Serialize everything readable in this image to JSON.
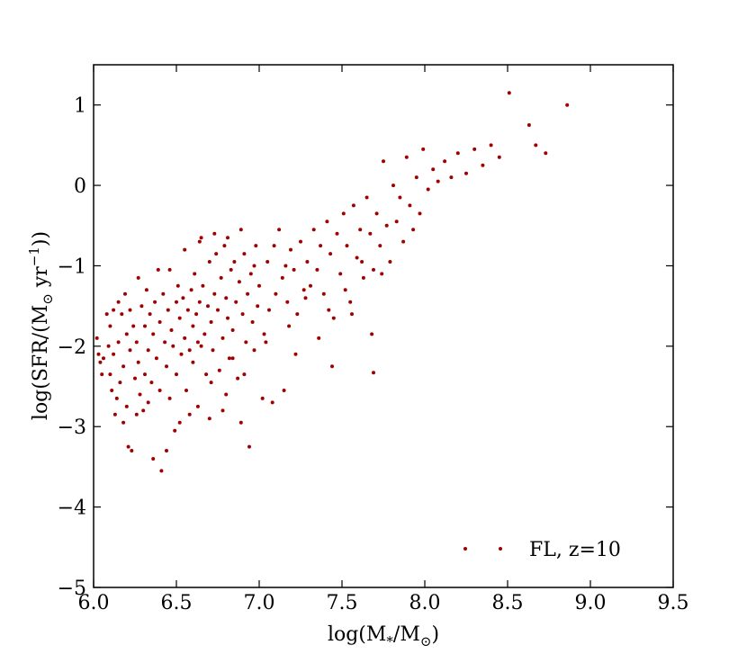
{
  "chart_data": {
    "type": "scatter",
    "xlabel": "log(M*/M⊙)",
    "ylabel": "log(SFR/(M⊙ yr−1))",
    "xlim": [
      6.0,
      9.5
    ],
    "ylim": [
      -5,
      1.5
    ],
    "x_ticks": [
      "6.0",
      "6.5",
      "7.0",
      "7.5",
      "8.0",
      "8.5",
      "9.0",
      "9.5"
    ],
    "y_ticks": [
      "−5",
      "−4",
      "−3",
      "−2",
      "−1",
      "0",
      "1"
    ],
    "grid": false,
    "legend_position": "lower-right",
    "marker_color": "#a00000",
    "series": [
      {
        "name": "FL, z=10",
        "points": [
          [
            6.02,
            -1.9
          ],
          [
            6.03,
            -2.1
          ],
          [
            6.04,
            -2.2
          ],
          [
            6.05,
            -2.35
          ],
          [
            6.06,
            -2.15
          ],
          [
            6.08,
            -1.6
          ],
          [
            6.09,
            -2.0
          ],
          [
            6.1,
            -1.75
          ],
          [
            6.1,
            -2.35
          ],
          [
            6.11,
            -2.55
          ],
          [
            6.12,
            -1.55
          ],
          [
            6.12,
            -2.1
          ],
          [
            6.13,
            -2.85
          ],
          [
            6.14,
            -2.65
          ],
          [
            6.15,
            -1.45
          ],
          [
            6.15,
            -1.95
          ],
          [
            6.16,
            -2.45
          ],
          [
            6.17,
            -1.6
          ],
          [
            6.18,
            -2.25
          ],
          [
            6.18,
            -2.95
          ],
          [
            6.19,
            -1.35
          ],
          [
            6.2,
            -1.85
          ],
          [
            6.2,
            -2.75
          ],
          [
            6.21,
            -3.25
          ],
          [
            6.22,
            -1.55
          ],
          [
            6.22,
            -2.05
          ],
          [
            6.23,
            -3.3
          ],
          [
            6.24,
            -1.75
          ],
          [
            6.25,
            -2.4
          ],
          [
            6.26,
            -1.95
          ],
          [
            6.27,
            -1.15
          ],
          [
            6.27,
            -2.2
          ],
          [
            6.28,
            -2.6
          ],
          [
            6.29,
            -1.5
          ],
          [
            6.3,
            -2.8
          ],
          [
            6.31,
            -1.75
          ],
          [
            6.31,
            -2.35
          ],
          [
            6.32,
            -1.3
          ],
          [
            6.33,
            -2.05
          ],
          [
            6.34,
            -1.6
          ],
          [
            6.35,
            -2.45
          ],
          [
            6.36,
            -1.85
          ],
          [
            6.36,
            -3.4
          ],
          [
            6.37,
            -1.45
          ],
          [
            6.38,
            -2.15
          ],
          [
            6.39,
            -1.05
          ],
          [
            6.4,
            -1.7
          ],
          [
            6.4,
            -2.55
          ],
          [
            6.41,
            -3.55
          ],
          [
            6.42,
            -1.35
          ],
          [
            6.43,
            -1.95
          ],
          [
            6.44,
            -2.25
          ],
          [
            6.45,
            -1.55
          ],
          [
            6.46,
            -1.05
          ],
          [
            6.46,
            -2.65
          ],
          [
            6.47,
            -1.8
          ],
          [
            6.48,
            -2.0
          ],
          [
            6.49,
            -3.05
          ],
          [
            6.5,
            -1.45
          ],
          [
            6.5,
            -2.35
          ],
          [
            6.51,
            -1.25
          ],
          [
            6.52,
            -1.65
          ],
          [
            6.53,
            -2.1
          ],
          [
            6.54,
            -1.4
          ],
          [
            6.55,
            -0.8
          ],
          [
            6.55,
            -1.9
          ],
          [
            6.56,
            -2.55
          ],
          [
            6.57,
            -1.55
          ],
          [
            6.58,
            -2.85
          ],
          [
            6.59,
            -1.3
          ],
          [
            6.6,
            -1.75
          ],
          [
            6.6,
            -2.2
          ],
          [
            6.61,
            -1.1
          ],
          [
            6.62,
            -1.6
          ],
          [
            6.63,
            -2.75
          ],
          [
            6.64,
            -1.45
          ],
          [
            6.65,
            -0.65
          ],
          [
            6.65,
            -2.0
          ],
          [
            6.66,
            -1.25
          ],
          [
            6.67,
            -1.85
          ],
          [
            6.68,
            -2.35
          ],
          [
            6.69,
            -1.5
          ],
          [
            6.7,
            -0.95
          ],
          [
            6.7,
            -2.9
          ],
          [
            6.71,
            -1.7
          ],
          [
            6.72,
            -2.05
          ],
          [
            6.73,
            -1.35
          ],
          [
            6.74,
            -0.85
          ],
          [
            6.75,
            -1.55
          ],
          [
            6.76,
            -2.3
          ],
          [
            6.77,
            -1.15
          ],
          [
            6.78,
            -1.9
          ],
          [
            6.79,
            -0.75
          ],
          [
            6.8,
            -1.4
          ],
          [
            6.8,
            -2.6
          ],
          [
            6.81,
            -1.65
          ],
          [
            6.82,
            -2.15
          ],
          [
            6.83,
            -1.05
          ],
          [
            6.84,
            -1.8
          ],
          [
            6.85,
            -0.95
          ],
          [
            6.86,
            -1.45
          ],
          [
            6.87,
            -2.4
          ],
          [
            6.88,
            -1.2
          ],
          [
            6.89,
            -2.95
          ],
          [
            6.9,
            -1.6
          ],
          [
            6.91,
            -0.85
          ],
          [
            6.92,
            -1.95
          ],
          [
            6.93,
            -1.35
          ],
          [
            6.94,
            -3.25
          ],
          [
            6.95,
            -1.1
          ],
          [
            6.96,
            -1.7
          ],
          [
            6.97,
            -2.05
          ],
          [
            6.98,
            -0.75
          ],
          [
            6.99,
            -1.5
          ],
          [
            7.0,
            -1.25
          ],
          [
            7.02,
            -2.65
          ],
          [
            7.03,
            -1.85
          ],
          [
            7.05,
            -0.95
          ],
          [
            7.06,
            -1.55
          ],
          [
            7.08,
            -2.7
          ],
          [
            7.1,
            -1.35
          ],
          [
            7.12,
            -0.55
          ],
          [
            7.14,
            -1.15
          ],
          [
            7.15,
            -2.55
          ],
          [
            7.17,
            -1.45
          ],
          [
            7.19,
            -0.8
          ],
          [
            7.21,
            -1.05
          ],
          [
            7.23,
            -1.6
          ],
          [
            7.25,
            -0.7
          ],
          [
            7.27,
            -1.3
          ],
          [
            7.29,
            -0.95
          ],
          [
            7.31,
            -1.25
          ],
          [
            7.33,
            -0.55
          ],
          [
            7.35,
            -1.05
          ],
          [
            7.37,
            -0.75
          ],
          [
            7.39,
            -1.35
          ],
          [
            7.41,
            -0.45
          ],
          [
            7.43,
            -0.85
          ],
          [
            7.45,
            -1.65
          ],
          [
            7.47,
            -0.6
          ],
          [
            7.49,
            -1.1
          ],
          [
            7.51,
            -0.35
          ],
          [
            7.53,
            -0.75
          ],
          [
            7.55,
            -1.45
          ],
          [
            7.57,
            -0.25
          ],
          [
            7.59,
            -0.9
          ],
          [
            7.61,
            -0.55
          ],
          [
            7.63,
            -1.15
          ],
          [
            7.65,
            -0.15
          ],
          [
            7.67,
            -0.6
          ],
          [
            7.69,
            -1.05
          ],
          [
            7.71,
            -0.35
          ],
          [
            7.73,
            -0.75
          ],
          [
            7.75,
            0.3
          ],
          [
            7.77,
            -0.5
          ],
          [
            7.79,
            -0.95
          ],
          [
            7.81,
            0.0
          ],
          [
            7.83,
            -0.45
          ],
          [
            7.85,
            -0.15
          ],
          [
            7.87,
            -0.7
          ],
          [
            7.89,
            0.35
          ],
          [
            7.91,
            -0.25
          ],
          [
            7.93,
            -0.55
          ],
          [
            7.95,
            0.1
          ],
          [
            7.97,
            -0.35
          ],
          [
            7.99,
            0.45
          ],
          [
            8.02,
            -0.05
          ],
          [
            8.05,
            0.2
          ],
          [
            8.08,
            0.05
          ],
          [
            8.12,
            0.3
          ],
          [
            8.16,
            0.1
          ],
          [
            8.2,
            0.4
          ],
          [
            8.25,
            0.15
          ],
          [
            8.3,
            0.45
          ],
          [
            8.35,
            0.25
          ],
          [
            8.4,
            0.5
          ],
          [
            8.45,
            0.35
          ],
          [
            8.51,
            1.15
          ],
          [
            8.63,
            0.75
          ],
          [
            8.67,
            0.5
          ],
          [
            8.73,
            0.4
          ],
          [
            8.86,
            1.0
          ],
          [
            6.26,
            -2.85
          ],
          [
            6.33,
            -2.7
          ],
          [
            6.44,
            -3.3
          ],
          [
            6.52,
            -2.95
          ],
          [
            6.58,
            -2.05
          ],
          [
            6.63,
            -1.95
          ],
          [
            6.71,
            -2.45
          ],
          [
            6.78,
            -2.8
          ],
          [
            6.84,
            -2.15
          ],
          [
            6.91,
            -2.35
          ],
          [
            7.04,
            -1.95
          ],
          [
            7.18,
            -1.75
          ],
          [
            7.22,
            -2.1
          ],
          [
            7.36,
            -1.9
          ],
          [
            7.44,
            -2.25
          ],
          [
            7.56,
            -1.6
          ],
          [
            7.68,
            -1.85
          ],
          [
            7.69,
            -2.33
          ],
          [
            7.62,
            -0.95
          ],
          [
            7.74,
            -1.1
          ],
          [
            7.52,
            -1.3
          ],
          [
            7.42,
            -1.55
          ],
          [
            7.28,
            -1.4
          ],
          [
            7.16,
            -1.0
          ],
          [
            7.09,
            -0.75
          ],
          [
            6.97,
            -1.0
          ],
          [
            6.89,
            -0.55
          ],
          [
            6.81,
            -0.65
          ],
          [
            6.73,
            -0.6
          ],
          [
            6.64,
            -0.7
          ]
        ]
      }
    ],
    "legend": "FL, z=10"
  }
}
